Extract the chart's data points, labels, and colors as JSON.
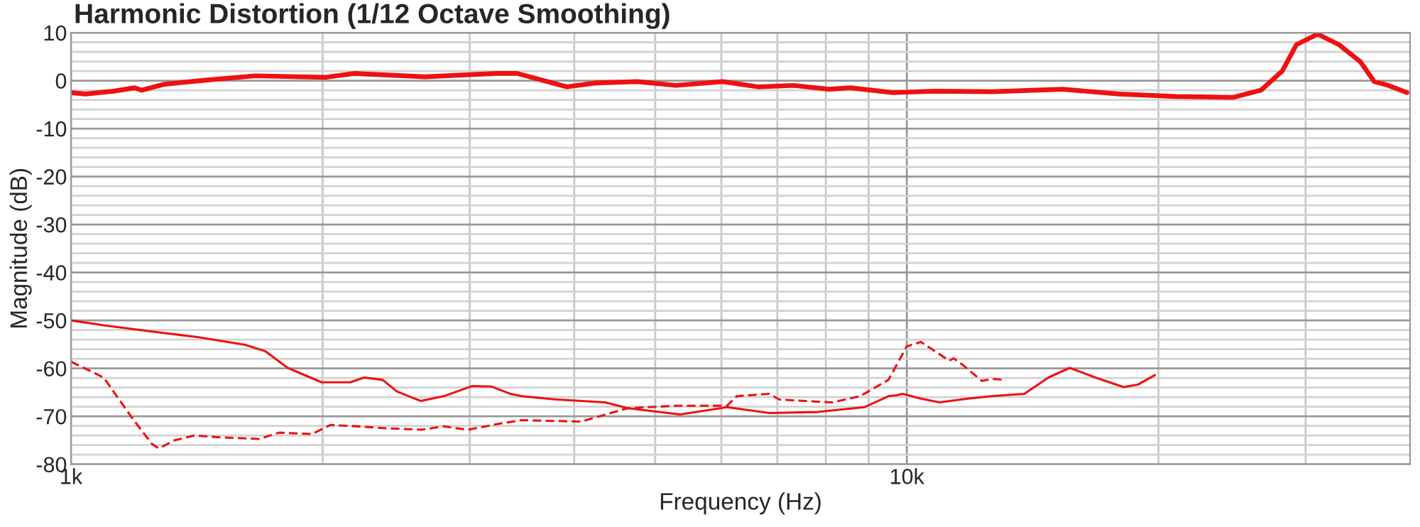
{
  "chart_data": {
    "type": "line",
    "title": "Harmonic Distortion (1/12 Octave Smoothing)",
    "xlabel": "Frequency (Hz)",
    "ylabel": "Magnitude (dB)",
    "log": "x",
    "grid": true,
    "marker": "none",
    "xlim": [
      1000,
      40000
    ],
    "xticks": [
      {
        "value": 1000,
        "label": "1k"
      },
      {
        "value": 2000,
        "label": null
      },
      {
        "value": 3000,
        "label": null
      },
      {
        "value": 4000,
        "label": null
      },
      {
        "value": 5000,
        "label": null
      },
      {
        "value": 6000,
        "label": null
      },
      {
        "value": 7000,
        "label": null
      },
      {
        "value": 8000,
        "label": null
      },
      {
        "value": 9000,
        "label": null
      },
      {
        "value": 10000,
        "label": "10k"
      },
      {
        "value": 20000,
        "label": null
      },
      {
        "value": 30000,
        "label": null
      }
    ],
    "ylim": [
      -80,
      10
    ],
    "yticks": [
      -80,
      {
        "value": -78,
        "label": null
      },
      {
        "value": -76,
        "label": null
      },
      {
        "value": -74,
        "label": null
      },
      {
        "value": -72,
        "label": null
      },
      -70,
      {
        "value": -68,
        "label": null
      },
      {
        "value": -66,
        "label": null
      },
      {
        "value": -64,
        "label": null
      },
      {
        "value": -62,
        "label": null
      },
      -60,
      {
        "value": -58,
        "label": null
      },
      {
        "value": -56,
        "label": null
      },
      {
        "value": -54,
        "label": null
      },
      {
        "value": -52,
        "label": null
      },
      -50,
      {
        "value": -48,
        "label": null
      },
      {
        "value": -46,
        "label": null
      },
      {
        "value": -44,
        "label": null
      },
      {
        "value": -42,
        "label": null
      },
      -40,
      {
        "value": -38,
        "label": null
      },
      {
        "value": -36,
        "label": null
      },
      {
        "value": -34,
        "label": null
      },
      {
        "value": -32,
        "label": null
      },
      -30,
      {
        "value": -28,
        "label": null
      },
      {
        "value": -26,
        "label": null
      },
      {
        "value": -24,
        "label": null
      },
      {
        "value": -22,
        "label": null
      },
      -20,
      {
        "value": -18,
        "label": null
      },
      {
        "value": -16,
        "label": null
      },
      {
        "value": -14,
        "label": null
      },
      {
        "value": -12,
        "label": null
      },
      -10,
      {
        "value": -8,
        "label": null
      },
      {
        "value": -6,
        "label": null
      },
      {
        "value": -4,
        "label": null
      },
      {
        "value": -2,
        "label": null
      },
      0,
      {
        "value": 2,
        "label": null
      },
      {
        "value": 4,
        "label": null
      },
      {
        "value": 6,
        "label": null
      },
      {
        "value": 8,
        "label": null
      },
      10
    ],
    "series": [
      {
        "color": "#ee1111",
        "line_style": "solid",
        "x": [
          1000,
          1040,
          1124,
          1192,
          1215,
          1289,
          1449,
          1661,
          2019,
          2183,
          2653,
          3225,
          3419,
          3920,
          4238,
          4764,
          5293,
          6022,
          6637,
          7317,
          8069,
          8555,
          9618,
          10812,
          12640,
          15360,
          17955,
          20989,
          24533,
          26529,
          28130,
          29248,
          31012,
          32885,
          34861,
          36244,
          37697,
          39650
        ],
        "values": [
          -2.5,
          -2.8,
          -2.2,
          -1.5,
          -2,
          -0.8,
          0.1,
          1,
          0.7,
          1.5,
          0.8,
          1.5,
          1.5,
          -1.3,
          -0.5,
          -0.2,
          -1,
          -0.2,
          -1.3,
          -1,
          -1.8,
          -1.5,
          -2.5,
          -2.2,
          -2.3,
          -1.8,
          -2.8,
          -3.3,
          -3.5,
          -2,
          2,
          7.5,
          9.7,
          7.5,
          4,
          -0.2,
          -1,
          -2.5
        ]
      },
      {
        "color": "#ee1111",
        "line_style": "solid",
        "x": [
          1000,
          1094,
          1249,
          1420,
          1616,
          1707,
          1817,
          1995,
          2158,
          2243,
          2360,
          2454,
          2622,
          2792,
          3018,
          3187,
          3353,
          3459,
          3814,
          4355,
          4636,
          5355,
          6092,
          6847,
          7821,
          8896,
          9506,
          9730,
          9883,
          10397,
          10939,
          11827,
          12640,
          13824,
          14773,
          15664,
          16806,
          18168,
          18895,
          19805
        ],
        "values": [
          -50,
          -51,
          -52.3,
          -53.5,
          -55.1,
          -56.4,
          -59.9,
          -62.9,
          -62.9,
          -61.9,
          -62.4,
          -64.8,
          -66.8,
          -65.8,
          -63.7,
          -63.8,
          -65.3,
          -65.8,
          -66.5,
          -67.1,
          -68.3,
          -69.6,
          -68.1,
          -69.3,
          -69.1,
          -68.1,
          -65.8,
          -65.6,
          -65.3,
          -66.3,
          -67.1,
          -66.3,
          -65.8,
          -65.3,
          -61.9,
          -59.9,
          -61.9,
          -63.9,
          -63.4,
          -61.4
        ]
      },
      {
        "color": "#ee1111",
        "line_style": "dashed",
        "x": [
          1000,
          1094,
          1183,
          1249,
          1274,
          1330,
          1404,
          1519,
          1680,
          1775,
          1942,
          2043,
          2209,
          2388,
          2622,
          2792,
          2983,
          3263,
          3459,
          4075,
          4636,
          5293,
          6092,
          6260,
          6847,
          7037,
          8132,
          8792,
          9506,
          10000,
          10397,
          11240,
          11374,
          11688,
          12291,
          12640,
          13141
        ],
        "values": [
          -58.6,
          -61.9,
          -70.3,
          -75.7,
          -76.7,
          -75,
          -74,
          -74.4,
          -74.7,
          -73.4,
          -73.7,
          -71.8,
          -72.1,
          -72.5,
          -72.8,
          -72.1,
          -72.8,
          -71.5,
          -70.8,
          -71.1,
          -68.3,
          -67.8,
          -67.8,
          -65.8,
          -65.3,
          -66.5,
          -67.1,
          -65.8,
          -62.4,
          -55.4,
          -54.5,
          -58.4,
          -57.9,
          -59.4,
          -62.6,
          -62.2,
          -62.4
        ]
      }
    ]
  }
}
